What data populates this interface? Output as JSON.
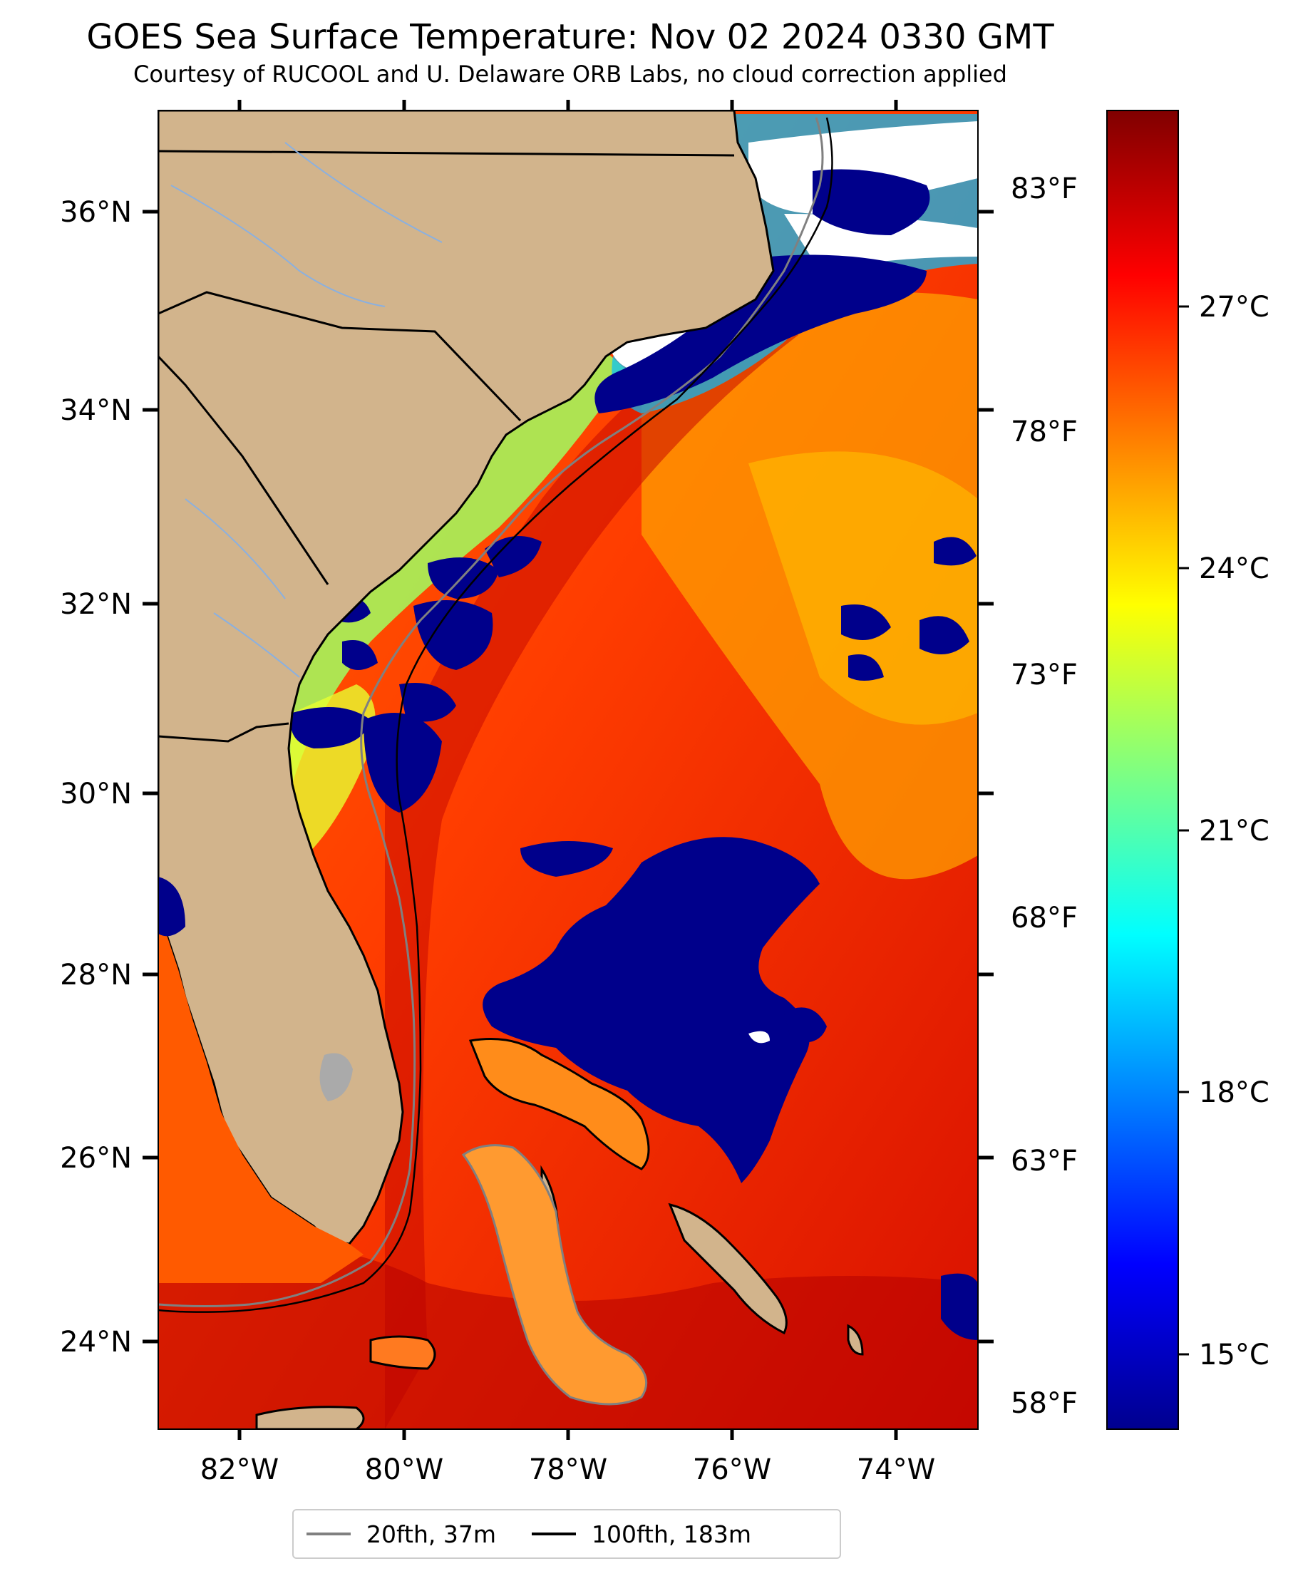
{
  "title": "GOES Sea Surface Temperature: Nov 02 2024 0330 GMT",
  "subtitle": "Courtesy of RUCOOL and U. Delaware ORB Labs, no cloud correction applied",
  "map": {
    "lon_range": [
      -83,
      -73
    ],
    "lat_range": [
      23.1,
      37.0
    ],
    "lat_ticks": [
      "24°N",
      "26°N",
      "28°N",
      "30°N",
      "32°N",
      "34°N",
      "36°N"
    ],
    "lon_ticks": [
      "82°W",
      "80°W",
      "78°W",
      "76°W",
      "74°W"
    ],
    "land_color": "#D2B48C",
    "cloud_mask_color": "#00008B"
  },
  "colorbar": {
    "colormap": "jet",
    "range_c": [
      13.5,
      29.5
    ],
    "celsius_ticks": [
      "15°C",
      "18°C",
      "21°C",
      "24°C",
      "27°C"
    ],
    "fahrenheit_ticks": [
      "58°F",
      "63°F",
      "68°F",
      "73°F",
      "78°F",
      "83°F"
    ]
  },
  "legend": {
    "items": [
      {
        "label": "20fth, 37m",
        "color": "#808080"
      },
      {
        "label": "100fth, 183m",
        "color": "#000000"
      }
    ]
  }
}
